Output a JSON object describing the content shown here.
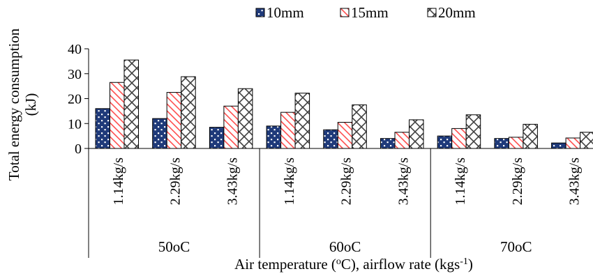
{
  "chart_data": {
    "type": "bar",
    "ylabel_line1": "Total energy consumption",
    "ylabel_line2": "(kJ)",
    "xlabel": "Air temperature (",
    "xlabel_sup1": "o",
    "xlabel_mid": "C), airflow rate (kgs",
    "xlabel_sup2": "-1",
    "xlabel_end": ")",
    "ylim": [
      0,
      40
    ],
    "yticks": [
      "0",
      "10",
      "20",
      "30",
      "40"
    ],
    "groups": [
      {
        "label": "50oC",
        "categories": [
          "1.14kg/s",
          "2.29kg/s",
          "3.43kg/s"
        ]
      },
      {
        "label": "60oC",
        "categories": [
          "1.14kg/s",
          "2.29kg/s",
          "3.43kg/s"
        ]
      },
      {
        "label": "70oC",
        "categories": [
          "1.14kg/s",
          "2.29kg/s",
          "3.43kg/s"
        ]
      }
    ],
    "series": [
      {
        "name": "10mm",
        "color": "#1f3a7a",
        "pattern": "dots",
        "values": [
          16,
          12,
          8.5,
          9,
          7.5,
          4,
          5,
          4,
          2.2
        ]
      },
      {
        "name": "15mm",
        "color": "#ff4d4d",
        "pattern": "hatch",
        "values": [
          26.5,
          22.5,
          17,
          14.5,
          10.5,
          6.5,
          8,
          4.5,
          4.2
        ]
      },
      {
        "name": "20mm",
        "color": "#404040",
        "pattern": "cross",
        "values": [
          35.5,
          28.8,
          24,
          22.2,
          17.5,
          11.5,
          13.5,
          9.7,
          6.5
        ]
      }
    ],
    "legend_position": "top",
    "grid": false
  }
}
